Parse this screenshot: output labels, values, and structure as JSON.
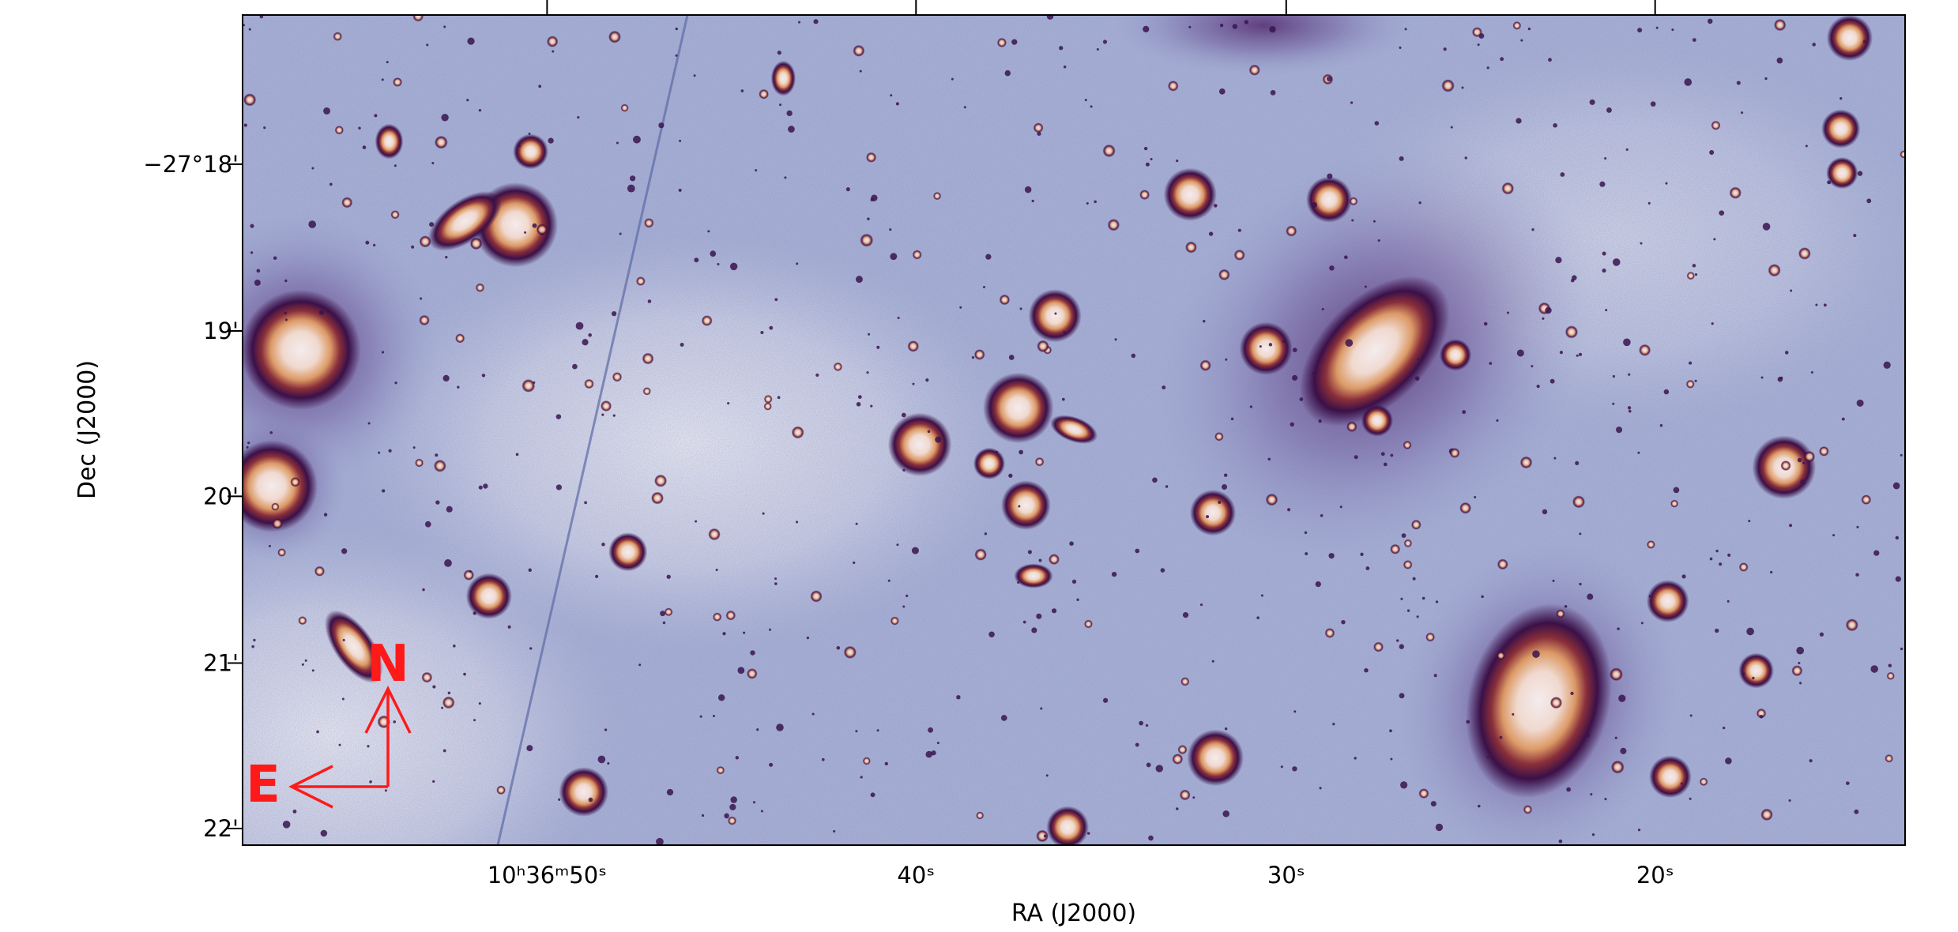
{
  "figure": {
    "x_axis": {
      "label": "RA (J2000)",
      "ticks": [
        "10ʰ36ᵐ50ˢ",
        "40ˢ",
        "30ˢ",
        "20ˢ"
      ]
    },
    "y_axis": {
      "label": "Dec (J2000)",
      "ticks": [
        "−27°18'",
        "19'",
        "20'",
        "21'",
        "22'"
      ]
    },
    "compass": {
      "north": "N",
      "east": "E"
    }
  }
}
